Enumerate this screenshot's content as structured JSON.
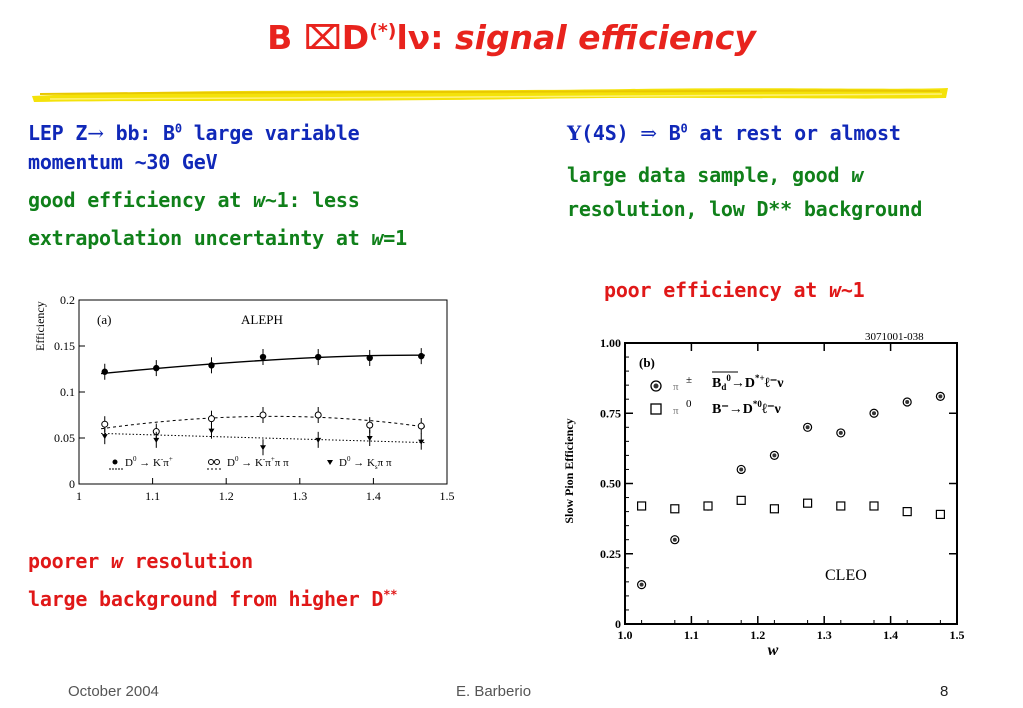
{
  "slide": {
    "title_b": "B",
    "title_x": "⌧",
    "title_d": "D",
    "title_sup": "(*)",
    "title_lnu": "lν:",
    "title_rest": "signal efficiency",
    "colors": {
      "title": "#e8231d",
      "blue": "#1028b8",
      "green": "#10801a",
      "red": "#e01818"
    }
  },
  "left_text": {
    "line1_a": "LEP Z",
    "line1_arrow": "→",
    "line1_b": " bb: B",
    "line1_sup": "0",
    "line1_c": " large variable",
    "line2": "momentum ~30 GeV",
    "line3_a": "good efficiency at ",
    "line3_w": "w",
    "line3_b": "~1: less",
    "line4_a": "extrapolation uncertainty at ",
    "line4_w": "w",
    "line4_b": "=1"
  },
  "right_text": {
    "line1_ups": "Υ",
    "line1_a": "(4S) ",
    "line1_arrow": "⇒",
    "line1_b": " B",
    "line1_sup": "0",
    "line1_c": " at rest or almost",
    "line2_a": "large data sample, good ",
    "line2_w": "w",
    "line3": "resolution, low D** background",
    "line4_a": "poor efficiency at ",
    "line4_w": "w",
    "line4_b": "~1"
  },
  "bottom_left": {
    "line1_a": "poorer ",
    "line1_w": "w",
    "line1_b": " resolution",
    "line2": "large background from higher D",
    "line2_sup": "**"
  },
  "footer": {
    "date": "October 2004",
    "author": "E. Barberio",
    "page": "8"
  },
  "chart_data": [
    {
      "type": "scatter",
      "title": "(a)",
      "annotation": "ALEPH",
      "xlabel": "",
      "ylabel": "Efficiency",
      "xlim": [
        1,
        1.5
      ],
      "ylim": [
        0,
        0.2
      ],
      "xticks": [
        "1",
        "1.1",
        "1.2",
        "1.3",
        "1.4",
        "1.5"
      ],
      "yticks": [
        "0",
        "0.05",
        "0.1",
        "0.15",
        "0.2"
      ],
      "legend": [
        {
          "name_a": "D",
          "name_sup": "0",
          "name_b": " → K",
          "name_c": "π",
          "name_d": "+"
        },
        {
          "name_a": "D",
          "name_sup": "0",
          "name_b": " → K",
          "name_c": "π",
          "name_d": "π π"
        },
        {
          "name_a": "D",
          "name_sup": "0",
          "name_b": " → K",
          "name_c": "s",
          "name_d": "π π"
        }
      ],
      "series": [
        {
          "marker": "filled-circle",
          "x": [
            1.035,
            1.105,
            1.18,
            1.25,
            1.325,
            1.395,
            1.465
          ],
          "y": [
            0.122,
            0.126,
            0.129,
            0.138,
            0.138,
            0.137,
            0.139
          ],
          "fit": [
            0.12,
            0.14
          ]
        },
        {
          "marker": "open-circle",
          "x": [
            1.035,
            1.105,
            1.18,
            1.25,
            1.325,
            1.395,
            1.465
          ],
          "y": [
            0.065,
            0.057,
            0.071,
            0.075,
            0.075,
            0.064,
            0.063
          ],
          "fit": [
            0.06,
            0.074,
            0.062
          ]
        },
        {
          "marker": "filled-triangle",
          "x": [
            1.035,
            1.105,
            1.18,
            1.25,
            1.325,
            1.395,
            1.465
          ],
          "y": [
            0.052,
            0.048,
            0.058,
            0.04,
            0.048,
            0.05,
            0.046
          ],
          "fit": [
            0.055,
            0.045
          ]
        }
      ]
    },
    {
      "type": "scatter",
      "title": "(b)",
      "annotation": "CLEO",
      "code": "3071001-038",
      "xlabel": "w",
      "ylabel": "Slow Pion Efficiency",
      "xlim": [
        1.0,
        1.5
      ],
      "ylim": [
        0,
        1.0
      ],
      "xticks": [
        "1.0",
        "1.1",
        "1.2",
        "1.3",
        "1.4",
        "1.5"
      ],
      "yticks": [
        "0",
        "0.25",
        "0.50",
        "0.75",
        "1.00"
      ],
      "legend": [
        {
          "pion": "π",
          "charge": "±",
          "label_a": "B",
          "label_sub": "d",
          "label_sup": "0",
          "label_b": "→D",
          "label_sup2": "*+",
          "label_c": "ℓ⁻ν"
        },
        {
          "pion": "π",
          "charge": "0",
          "label_a": "B⁻",
          "label_b": "→D",
          "label_sup2": "*0",
          "label_c": "ℓ⁻ν"
        }
      ],
      "series": [
        {
          "name": "π±",
          "marker": "circle-dot",
          "x": [
            1.025,
            1.075,
            1.125,
            1.175,
            1.225,
            1.275,
            1.325,
            1.375,
            1.425,
            1.475
          ],
          "y": [
            0.14,
            0.3,
            0.42,
            0.55,
            0.6,
            0.7,
            0.68,
            0.75,
            0.79,
            0.81
          ]
        },
        {
          "name": "π0",
          "marker": "open-square",
          "x": [
            1.025,
            1.075,
            1.125,
            1.175,
            1.225,
            1.275,
            1.325,
            1.375,
            1.425,
            1.475
          ],
          "y": [
            0.42,
            0.41,
            0.42,
            0.44,
            0.41,
            0.43,
            0.42,
            0.42,
            0.4,
            0.39
          ]
        }
      ]
    }
  ]
}
